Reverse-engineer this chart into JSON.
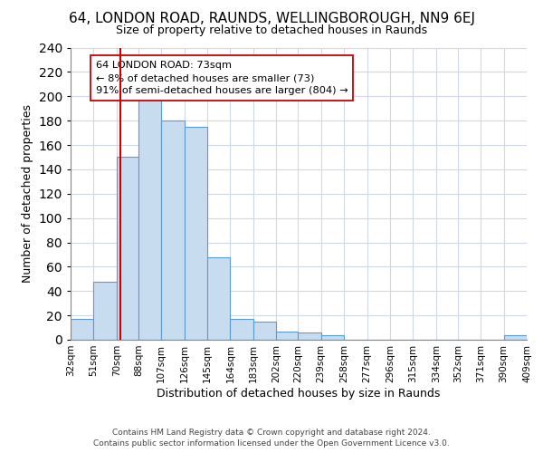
{
  "title": "64, LONDON ROAD, RAUNDS, WELLINGBOROUGH, NN9 6EJ",
  "subtitle": "Size of property relative to detached houses in Raunds",
  "xlabel": "Distribution of detached houses by size in Raunds",
  "ylabel": "Number of detached properties",
  "bar_values": [
    17,
    48,
    150,
    201,
    180,
    175,
    68,
    17,
    15,
    7,
    6,
    4,
    0,
    0,
    0,
    0,
    0,
    0,
    0,
    4
  ],
  "bin_edges": [
    32,
    51,
    70,
    88,
    107,
    126,
    145,
    164,
    183,
    202,
    220,
    239,
    258,
    277,
    296,
    315,
    334,
    352,
    371,
    390,
    409
  ],
  "bar_color": "#c8dcf0",
  "bar_edge_color": "#5b9bd5",
  "vline_x": 73,
  "vline_color": "#cc0000",
  "ylim": [
    0,
    240
  ],
  "yticks": [
    0,
    20,
    40,
    60,
    80,
    100,
    120,
    140,
    160,
    180,
    200,
    220,
    240
  ],
  "annotation_text": "64 LONDON ROAD: 73sqm\n← 8% of detached houses are smaller (73)\n91% of semi-detached houses are larger (804) →",
  "footer_line1": "Contains HM Land Registry data © Crown copyright and database right 2024.",
  "footer_line2": "Contains public sector information licensed under the Open Government Licence v3.0.",
  "background_color": "#ffffff",
  "grid_color": "#d0d8e8"
}
